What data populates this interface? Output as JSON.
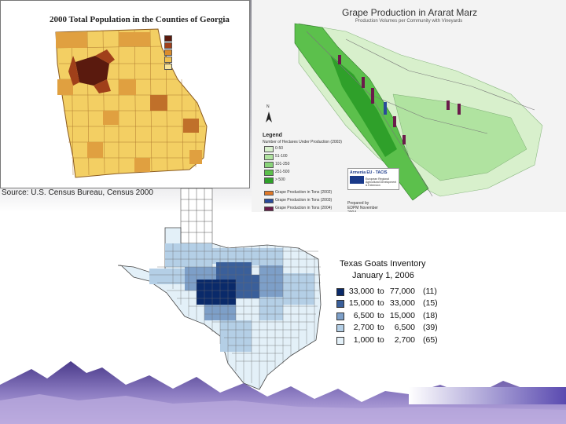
{
  "georgia": {
    "title": "2000 Total Population in the Counties of Georgia",
    "source": "Source: U.S. Census Bureau, Census 2000",
    "legend_colors": [
      "#5a1a0e",
      "#a0401a",
      "#d98c2c",
      "#f0c050",
      "#f7e49a"
    ],
    "legend_labels": [
      "",
      "",
      "",
      "",
      ""
    ]
  },
  "ararat": {
    "title": "Grape Production in Ararat Marz",
    "subtitle": "Production Volumes per Community with Vineyards",
    "north_label": "N",
    "legend_title": "Legend",
    "legend_subtitle": "Number of Hectares Under Production (2003)",
    "legend_colors": [
      "#d8f0cc",
      "#b0e3a0",
      "#8ad47a",
      "#5cc04c",
      "#2fa02a"
    ],
    "legend_labels": [
      "0-50",
      "51-100",
      "101-250",
      "251-500",
      "> 500"
    ],
    "bar_legend": [
      {
        "color": "#e07828",
        "label": "Grape Production in Tons (2002)"
      },
      {
        "color": "#2a4a9a",
        "label": "Grape Production in Tons (2003)"
      },
      {
        "color": "#6a1a4a",
        "label": "Grape Production in Tons (2004)"
      }
    ],
    "logo_text": "Armenia  EU - TACIS",
    "logo_sub": "European Regional Agricultural Development & Extension",
    "footer": "Prepared by EDPM November 2004"
  },
  "texas": {
    "title_line1": "Texas Goats Inventory",
    "title_line2": "January 1, 2006",
    "legend": [
      {
        "color": "#0a2a6a",
        "from": "33,000",
        "to": "77,000",
        "count": "(11)"
      },
      {
        "color": "#3a5f9a",
        "from": "15,000",
        "to": "33,000",
        "count": "(15)"
      },
      {
        "color": "#7d9fc8",
        "from": "6,500",
        "to": "15,000",
        "count": "(18)"
      },
      {
        "color": "#b4cfe6",
        "from": "2,700",
        "to": "6,500",
        "count": "(39)"
      },
      {
        "color": "#e3f0f8",
        "from": "1,000",
        "to": "2,700",
        "count": "(65)"
      }
    ],
    "to_word": "to"
  }
}
